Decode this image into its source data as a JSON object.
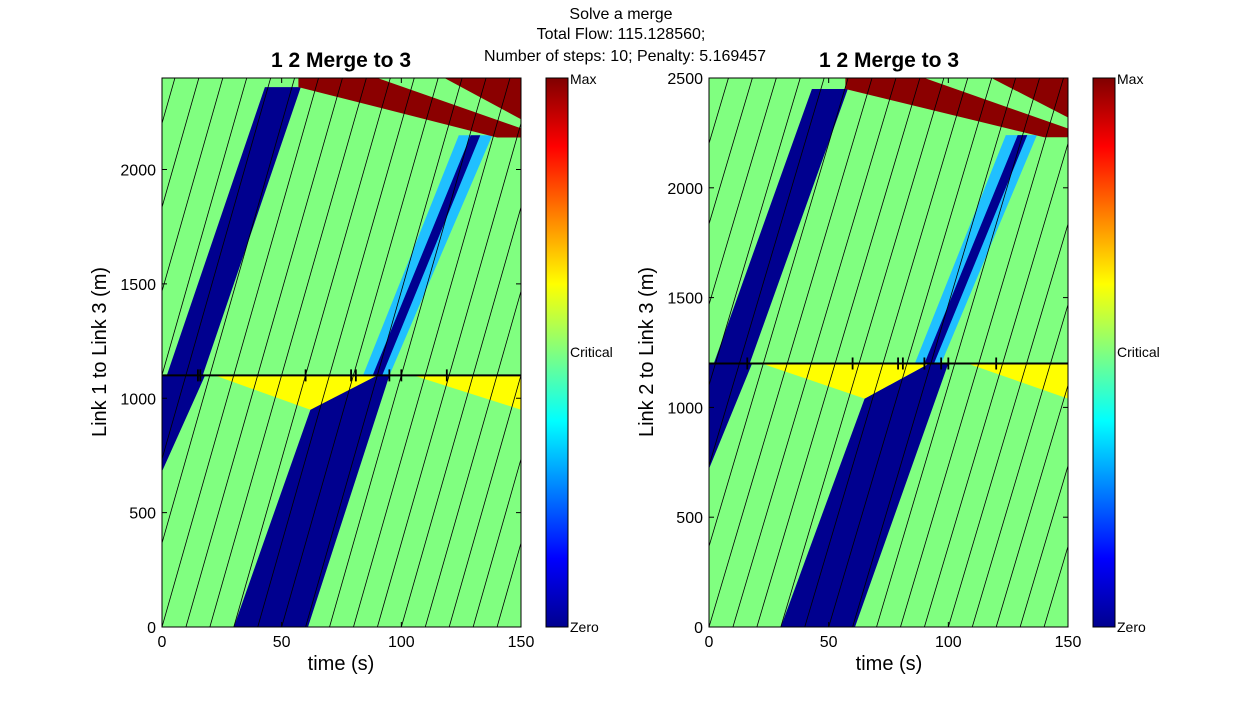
{
  "figure": {
    "suptitle_lines": [
      "Solve a merge",
      "Total Flow: 115.128560;",
      "Number of steps: 10; Penalty: 5.169457"
    ]
  },
  "colorbar": {
    "labels": {
      "max": "Max",
      "critical": "Critical",
      "zero": "Zero"
    },
    "stops": [
      "#00008f",
      "#0000ff",
      "#0080ff",
      "#00ffff",
      "#80ff80",
      "#ffff00",
      "#ff8000",
      "#ff0000",
      "#800000"
    ]
  },
  "colors": {
    "free": "#80ff80",
    "empty": "#00008f",
    "light": "#20c0ff",
    "congested": "#ffff00",
    "jam": "#8b0000",
    "line": "#000000"
  },
  "chart_data": [
    {
      "type": "heatmap",
      "title": "1 2 Merge to 3",
      "xlabel": "time (s)",
      "ylabel": "Link 1 to Link 3   (m)",
      "xlim": [
        0,
        150
      ],
      "ylim": [
        0,
        2400
      ],
      "xticks": [
        0,
        50,
        100,
        150
      ],
      "yticks": [
        0,
        500,
        1000,
        1500,
        2000
      ],
      "junction_y": 1100,
      "junction_ticks": [
        15,
        16,
        60,
        79,
        81,
        95,
        100,
        119
      ],
      "regions": [
        {
          "kind": "empty",
          "points": [
            [
              30,
              0
            ],
            [
              61,
              0
            ],
            [
              95,
              1100
            ],
            [
              88,
              1100
            ],
            [
              62,
              950
            ]
          ]
        },
        {
          "kind": "empty",
          "points": [
            [
              0,
              680
            ],
            [
              0,
              1100
            ],
            [
              18,
              1100
            ]
          ]
        },
        {
          "kind": "congested",
          "points": [
            [
              22,
              1100
            ],
            [
              90,
              1100
            ],
            [
              62,
              950
            ]
          ]
        },
        {
          "kind": "congested",
          "points": [
            [
              105,
              1100
            ],
            [
              150,
              1100
            ],
            [
              150,
              950
            ]
          ]
        },
        {
          "kind": "empty",
          "points": [
            [
              2,
              1100
            ],
            [
              17,
              1100
            ],
            [
              58,
              2360
            ],
            [
              43,
              2360
            ]
          ]
        },
        {
          "kind": "light",
          "points": [
            [
              84,
              1100
            ],
            [
              95,
              1100
            ],
            [
              138,
              2150
            ],
            [
              124,
              2150
            ]
          ]
        },
        {
          "kind": "empty",
          "points": [
            [
              88,
              1100
            ],
            [
              92,
              1100
            ],
            [
              133,
              2150
            ],
            [
              129,
              2150
            ]
          ]
        },
        {
          "kind": "jam",
          "points": [
            [
              57,
              2400
            ],
            [
              150,
              2400
            ],
            [
              150,
              2220
            ],
            [
              118,
              2400
            ]
          ]
        },
        {
          "kind": "jam",
          "points": [
            [
              57,
              2360
            ],
            [
              140,
              2140
            ],
            [
              150,
              2140
            ],
            [
              150,
              2180
            ],
            [
              90,
              2400
            ],
            [
              57,
              2400
            ]
          ]
        }
      ],
      "characteristic_lines": {
        "upstream_offset": 30,
        "downstream_offset": 20,
        "slope": 36.7
      }
    },
    {
      "type": "heatmap",
      "title": "1 2 Merge to 3",
      "xlabel": "time (s)",
      "ylabel": "Link 2 to Link 3   (m)",
      "xlim": [
        0,
        150
      ],
      "ylim": [
        0,
        2500
      ],
      "xticks": [
        0,
        50,
        100,
        150
      ],
      "yticks": [
        0,
        500,
        1000,
        1500,
        2000,
        2500
      ],
      "junction_y": 1200,
      "junction_ticks": [
        16,
        60,
        79,
        81,
        90,
        97,
        100,
        120
      ],
      "regions": [
        {
          "kind": "empty",
          "points": [
            [
              30,
              0
            ],
            [
              61,
              0
            ],
            [
              100,
              1200
            ],
            [
              92,
              1200
            ],
            [
              65,
              1040
            ]
          ]
        },
        {
          "kind": "empty",
          "points": [
            [
              0,
              720
            ],
            [
              0,
              1200
            ],
            [
              18,
              1200
            ]
          ]
        },
        {
          "kind": "congested",
          "points": [
            [
              22,
              1200
            ],
            [
              92,
              1200
            ],
            [
              65,
              1040
            ]
          ]
        },
        {
          "kind": "congested",
          "points": [
            [
              108,
              1200
            ],
            [
              150,
              1200
            ],
            [
              150,
              1040
            ]
          ]
        },
        {
          "kind": "empty",
          "points": [
            [
              2,
              1200
            ],
            [
              17,
              1200
            ],
            [
              58,
              2450
            ],
            [
              43,
              2450
            ]
          ]
        },
        {
          "kind": "light",
          "points": [
            [
              86,
              1200
            ],
            [
              97,
              1200
            ],
            [
              137,
              2240
            ],
            [
              124,
              2240
            ]
          ]
        },
        {
          "kind": "empty",
          "points": [
            [
              90,
              1200
            ],
            [
              94,
              1200
            ],
            [
              133,
              2240
            ],
            [
              129,
              2240
            ]
          ]
        },
        {
          "kind": "jam",
          "points": [
            [
              57,
              2500
            ],
            [
              150,
              2500
            ],
            [
              150,
              2320
            ],
            [
              118,
              2500
            ]
          ]
        },
        {
          "kind": "jam",
          "points": [
            [
              57,
              2450
            ],
            [
              140,
              2230
            ],
            [
              150,
              2230
            ],
            [
              150,
              2270
            ],
            [
              90,
              2500
            ],
            [
              57,
              2500
            ]
          ]
        }
      ],
      "characteristic_lines": {
        "upstream_offset": 30,
        "downstream_offset": 20,
        "slope": 36.7
      }
    }
  ]
}
